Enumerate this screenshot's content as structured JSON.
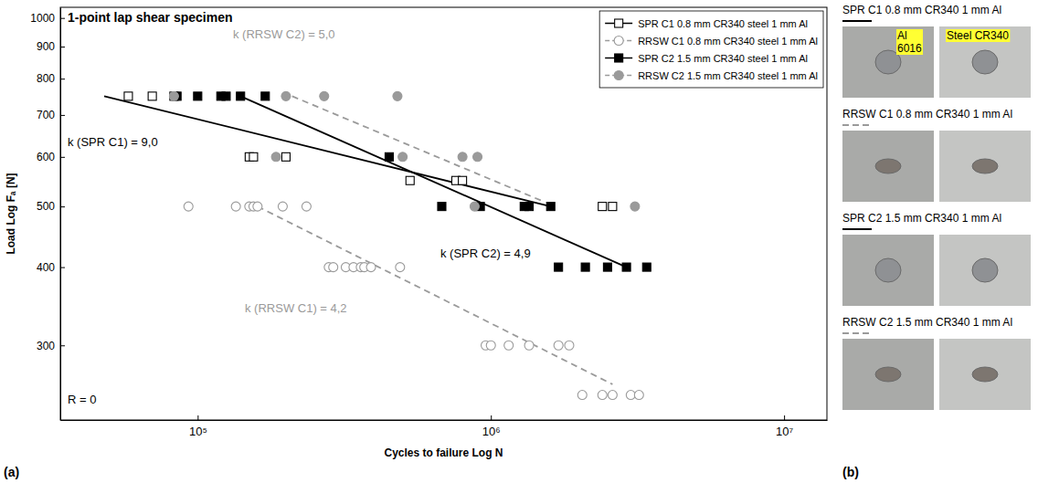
{
  "chart_data": {
    "type": "scatter",
    "title": "1-point lap shear specimen",
    "x_label": "Cycles to failure Log N",
    "y_label": "Load Log Fₐ [N]",
    "log": true,
    "grid": false,
    "legend": "upper right",
    "xlim": [
      34000,
      14000000
    ],
    "xticks": [
      {
        "value": 100000,
        "label": "10⁵"
      },
      {
        "value": 1000000,
        "label": "10⁶"
      },
      {
        "value": 10000000,
        "label": "10⁷"
      }
    ],
    "ylim": [
      228,
      1040
    ],
    "yticks": [
      300,
      400,
      500,
      600,
      700,
      800,
      900,
      1000
    ],
    "series": [
      {
        "name": "SPR C1 0.8 mm CR340 steel 1 mm Al",
        "color": "#000000",
        "marker": "square_open",
        "line_style": "solid",
        "x": [
          58000,
          70000,
          83000,
          150000,
          155000,
          200000,
          530000,
          760000,
          800000,
          2400000,
          2600000
        ],
        "values": [
          750,
          750,
          750,
          600,
          600,
          600,
          550,
          550,
          550,
          500,
          500
        ],
        "fit": {
          "x": [
            48000,
            1600000
          ],
          "values": [
            750,
            500
          ]
        }
      },
      {
        "name": "RRSW C1 0.8 mm CR340 steel 1 mm Al",
        "color": "#9a9a9a",
        "marker": "circle_open",
        "line_style": "dashed",
        "x": [
          93000,
          135000,
          150000,
          155000,
          160000,
          195000,
          235000,
          280000,
          290000,
          320000,
          340000,
          360000,
          370000,
          390000,
          490000,
          960000,
          1000000,
          1150000,
          1350000,
          1700000,
          1850000,
          2050000,
          2400000,
          2600000,
          3000000,
          3200000
        ],
        "values": [
          500,
          500,
          500,
          500,
          500,
          500,
          500,
          400,
          400,
          400,
          400,
          400,
          400,
          400,
          400,
          300,
          300,
          300,
          300,
          300,
          300,
          250,
          250,
          250,
          250,
          250
        ],
        "fit": {
          "x": [
            160000,
            2600000
          ],
          "values": [
            500,
            260
          ]
        }
      },
      {
        "name": "SPR C2 1.5 mm CR340 steel 1 mm Al",
        "color": "#000000",
        "marker": "square",
        "line_style": "solid",
        "x": [
          85000,
          100000,
          120000,
          125000,
          140000,
          170000,
          450000,
          680000,
          920000,
          1300000,
          1350000,
          1600000,
          1700000,
          2100000,
          2500000,
          2900000,
          3400000
        ],
        "values": [
          750,
          750,
          750,
          750,
          750,
          750,
          600,
          500,
          500,
          500,
          500,
          500,
          400,
          400,
          400,
          400,
          400
        ],
        "fit": {
          "x": [
            140000,
            2900000
          ],
          "values": [
            750,
            400
          ]
        }
      },
      {
        "name": "RRSW C2 1.5 mm CR340 steel 1 mm Al",
        "color": "#9a9a9a",
        "marker": "circle",
        "line_style": "dashed",
        "x": [
          83000,
          200000,
          270000,
          480000,
          185000,
          500000,
          800000,
          900000,
          880000,
          3100000
        ],
        "values": [
          750,
          750,
          750,
          750,
          600,
          600,
          600,
          600,
          500,
          500
        ],
        "fit": {
          "x": [
            210000,
            1500000
          ],
          "values": [
            750,
            510
          ]
        }
      }
    ],
    "annotations": [
      {
        "text": "k (SPR C1) = 9,0",
        "color": "#000000"
      },
      {
        "text": "k (RRSW C2) = 5,0",
        "color": "#9a9a9a"
      },
      {
        "text": "k (SPR C2) = 4,9",
        "color": "#000000"
      },
      {
        "text": "k (RRSW C1) = 4,2",
        "color": "#9a9a9a"
      },
      {
        "text": "R = 0",
        "color": "#000000"
      }
    ]
  },
  "panel_a": {
    "letter": "(a)"
  },
  "panel_b": {
    "letter": "(b)",
    "rows": [
      {
        "title": "SPR C1 0.8 mm CR340 1 mm Al",
        "line_style": "solid"
      },
      {
        "title": "RRSW C1 0.8 mm CR340 1 mm Al",
        "line_style": "dashed"
      },
      {
        "title": "SPR C2 1.5 mm CR340 1 mm Al",
        "line_style": "solid"
      },
      {
        "title": "RRSW C2 1.5 mm CR340 1 mm Al",
        "line_style": "dashed"
      }
    ],
    "material_labels": [
      "Al 6016",
      "Steel CR340"
    ]
  }
}
